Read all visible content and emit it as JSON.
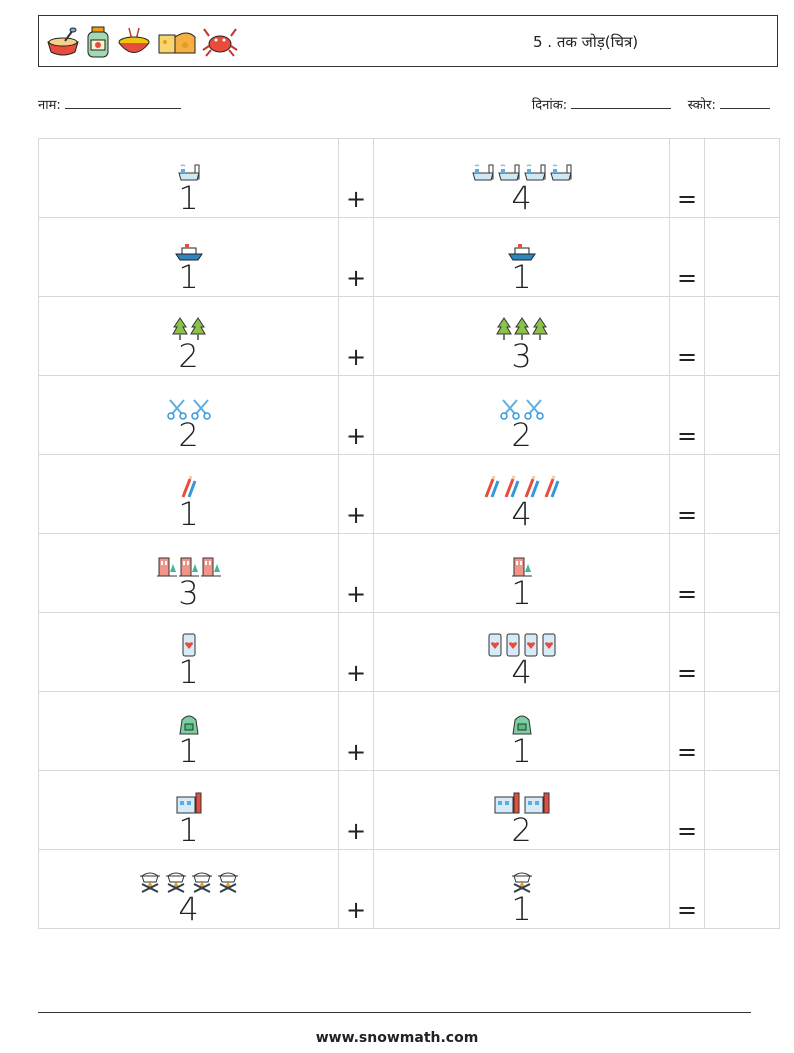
{
  "header": {
    "icons": [
      "porridge-bowl-icon",
      "jam-jar-icon",
      "noodle-bowl-icon",
      "cheese-icon",
      "crab-icon"
    ],
    "title": "5 . तक जोड़(चित्र)"
  },
  "info": {
    "name_label": "नाम:",
    "date_label": "दिनांक:",
    "score_label": "स्कोर:"
  },
  "operators": {
    "plus": "+",
    "equals": "="
  },
  "rows": [
    {
      "a": {
        "count": "1",
        "icon": "bathtub-icon"
      },
      "b": {
        "count": "4",
        "icon": "bathtub-icon"
      }
    },
    {
      "a": {
        "count": "1",
        "icon": "ship-icon"
      },
      "b": {
        "count": "1",
        "icon": "ship-icon"
      }
    },
    {
      "a": {
        "count": "2",
        "icon": "tree-icon"
      },
      "b": {
        "count": "3",
        "icon": "tree-icon"
      }
    },
    {
      "a": {
        "count": "2",
        "icon": "scissors-icon"
      },
      "b": {
        "count": "2",
        "icon": "scissors-icon"
      }
    },
    {
      "a": {
        "count": "1",
        "icon": "pencils-icon"
      },
      "b": {
        "count": "4",
        "icon": "pencils-icon"
      }
    },
    {
      "a": {
        "count": "3",
        "icon": "house-tree-icon"
      },
      "b": {
        "count": "1",
        "icon": "house-tree-icon"
      }
    },
    {
      "a": {
        "count": "1",
        "icon": "phone-heart-icon"
      },
      "b": {
        "count": "4",
        "icon": "phone-heart-icon"
      }
    },
    {
      "a": {
        "count": "1",
        "icon": "backpack-icon"
      },
      "b": {
        "count": "1",
        "icon": "backpack-icon"
      }
    },
    {
      "a": {
        "count": "1",
        "icon": "building-icon"
      },
      "b": {
        "count": "2",
        "icon": "building-icon"
      }
    },
    {
      "a": {
        "count": "4",
        "icon": "campfire-pot-icon"
      },
      "b": {
        "count": "1",
        "icon": "campfire-pot-icon"
      }
    }
  ],
  "footer": {
    "url": "www.snowmath.com"
  }
}
